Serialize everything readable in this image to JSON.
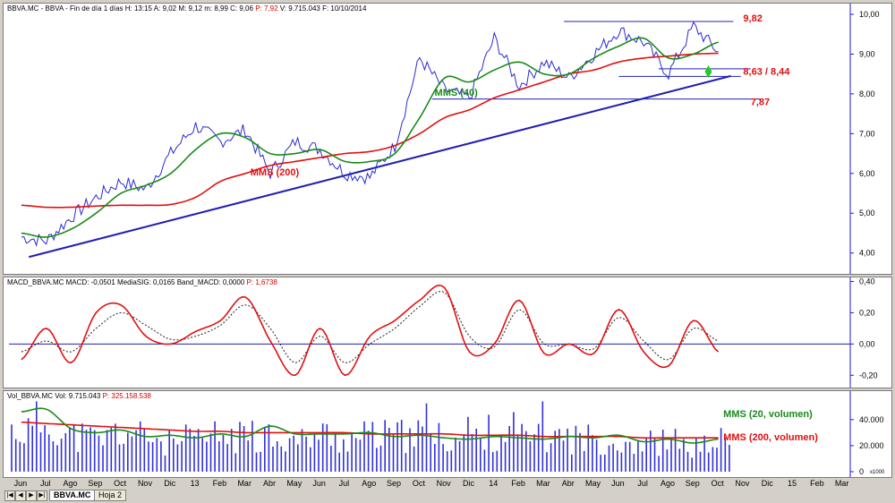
{
  "colors": {
    "price": "#2a2ad0",
    "ma40": "#1a8a1a",
    "ma200": "#e01010",
    "trendline": "#2020b0",
    "label_red": "#e01010",
    "label_green": "#1a8a1a",
    "macd": "#e01010",
    "signal": "#202020",
    "volume": "#3030d8"
  },
  "price_panel": {
    "header": {
      "prefix": "BBVA.MC - BBVA - Fin de día 1 días  H: 13:15  A: 9,02  M: 9,12  m: 8,99  C: 9,06  ",
      "pchange": "P: 7,92",
      "suffix": "  V: 9.715.043  F: 10/10/2014"
    },
    "annotations": {
      "resistance": "9,82",
      "support_range": "8,63 / 8,44",
      "support_low": "7,87",
      "ma40_label": "MMS (40)",
      "ma200_label": "MMS (200)"
    }
  },
  "macd_panel": {
    "header": {
      "text": "MACD_BBVA.MC  MACD: -0,0501  MediaSIG: 0,0165  Band_MACD: 0,0000  ",
      "pchange": "P: 1,6738"
    }
  },
  "volume_panel": {
    "header": {
      "text": "Vol_BBVA.MC  Vol: 9.715.043  ",
      "pchange": "P: 325.158.538"
    },
    "annotations": {
      "ma20_label": "MMS (20, volumen)",
      "ma200_label": "MMS (200, volumen)"
    },
    "scale_badge": "x1000"
  },
  "tabs": {
    "nav": [
      "|◀",
      "◀",
      "▶",
      "▶|"
    ],
    "items": [
      {
        "label": "BBVA.MC",
        "active": true
      },
      {
        "label": "Hoja 2",
        "active": false
      }
    ]
  },
  "chart_data": [
    {
      "type": "line",
      "title": "BBVA.MC",
      "ylim": [
        3.7,
        10.0
      ],
      "yticks": [
        "10,00",
        "9,00",
        "8,00",
        "7,00",
        "6,00",
        "5,00",
        "4,00"
      ],
      "ytick_values": [
        10,
        9,
        8,
        7,
        6,
        5,
        4
      ],
      "x_categories": [
        "Jun",
        "Jul",
        "Ago",
        "Sep",
        "Oct",
        "Nov",
        "Dic",
        "13",
        "Feb",
        "Mar",
        "Abr",
        "May",
        "Jun",
        "Jul",
        "Ago",
        "Sep",
        "Oct",
        "Nov",
        "Dic",
        "14",
        "Feb",
        "Mar",
        "Abr",
        "May",
        "Jun",
        "Jul",
        "Ago",
        "Sep",
        "Oct",
        "Nov",
        "Dic",
        "15",
        "Feb",
        "Mar"
      ],
      "last_data_index": 28,
      "series": [
        {
          "key": "price",
          "values": [
            4.4,
            4.3,
            4.9,
            5.4,
            5.8,
            5.6,
            6.5,
            7.2,
            6.8,
            7.1,
            6.0,
            6.8,
            6.6,
            6.0,
            5.9,
            6.7,
            8.9,
            8.1,
            7.9,
            9.4,
            8.2,
            8.8,
            8.4,
            9.0,
            9.6,
            9.3,
            8.5,
            9.7,
            9.06
          ]
        },
        {
          "key": "ma40",
          "name": "MMS (40)",
          "values": [
            4.5,
            4.4,
            4.6,
            5.0,
            5.5,
            5.7,
            6.0,
            6.6,
            7.0,
            6.9,
            6.5,
            6.5,
            6.6,
            6.3,
            6.3,
            6.5,
            7.4,
            8.4,
            8.3,
            8.6,
            8.8,
            8.5,
            8.5,
            8.9,
            9.2,
            9.4,
            8.9,
            9.0,
            9.3
          ]
        },
        {
          "key": "ma200",
          "name": "MMS (200)",
          "values": [
            5.2,
            5.15,
            5.15,
            5.18,
            5.2,
            5.2,
            5.22,
            5.4,
            5.8,
            6.0,
            6.2,
            6.3,
            6.4,
            6.5,
            6.55,
            6.7,
            7.0,
            7.4,
            7.6,
            7.9,
            8.1,
            8.3,
            8.5,
            8.6,
            8.8,
            8.9,
            8.95,
            9.0,
            9.02
          ]
        }
      ],
      "trendline": {
        "x": [
          0.3,
          28.5
        ],
        "y": [
          3.9,
          8.45
        ]
      },
      "horizontal_levels": [
        {
          "y": 9.82,
          "x": [
            21.8,
            28.6
          ]
        },
        {
          "y": 8.63,
          "x": [
            25.6,
            29.3
          ]
        },
        {
          "y": 8.44,
          "x": [
            24.0,
            28.9
          ]
        },
        {
          "y": 7.87,
          "x": [
            16.5,
            29.8
          ]
        }
      ]
    },
    {
      "type": "line",
      "title": "MACD",
      "ylim": [
        -0.25,
        0.38
      ],
      "yticks": [
        "0,40",
        "0,20",
        "0,00",
        "-0,20"
      ],
      "ytick_values": [
        0.4,
        0.2,
        0.0,
        -0.2
      ],
      "series": [
        {
          "key": "macd",
          "name": "MACD",
          "values": [
            -0.1,
            0.1,
            -0.12,
            0.2,
            0.25,
            0.05,
            0.0,
            0.08,
            0.15,
            0.3,
            0.02,
            -0.2,
            0.1,
            -0.2,
            0.05,
            0.15,
            0.28,
            0.36,
            -0.05,
            0.0,
            0.28,
            -0.06,
            0.0,
            -0.06,
            0.22,
            -0.05,
            -0.14,
            0.15,
            -0.05
          ]
        },
        {
          "key": "signal",
          "name": "MediaSIG",
          "values": [
            -0.05,
            0.02,
            -0.05,
            0.1,
            0.2,
            0.12,
            0.03,
            0.05,
            0.12,
            0.25,
            0.1,
            -0.12,
            0.05,
            -0.12,
            0.0,
            0.1,
            0.24,
            0.33,
            0.05,
            -0.02,
            0.22,
            0.0,
            0.0,
            -0.03,
            0.17,
            0.02,
            -0.1,
            0.1,
            0.02
          ]
        }
      ]
    },
    {
      "type": "bar",
      "title": "Volumen",
      "ylim": [
        0,
        55
      ],
      "yticks": [
        "40.000",
        "20.000",
        "0"
      ],
      "ytick_values": [
        40,
        20,
        0
      ],
      "series": [
        {
          "key": "volume",
          "name": "Vol",
          "values": [
            35,
            42,
            30,
            28,
            33,
            30,
            24,
            27,
            30,
            29,
            33,
            26,
            31,
            28,
            30,
            30,
            31,
            29,
            28,
            33,
            28,
            30,
            29,
            28,
            26,
            25,
            25,
            21,
            26
          ]
        },
        {
          "key": "ma20",
          "name": "MMS (20, volumen)",
          "values": [
            46,
            48,
            33,
            30,
            32,
            27,
            28,
            26,
            29,
            27,
            35,
            29,
            29,
            29,
            30,
            27,
            28,
            26,
            25,
            27,
            26,
            25,
            27,
            26,
            28,
            23,
            25,
            22,
            25
          ]
        },
        {
          "key": "ma200",
          "name": "MMS (200, volumen)",
          "values": [
            38,
            37,
            36,
            35,
            34,
            33,
            32,
            31,
            31,
            30,
            30,
            30,
            30,
            30,
            29,
            29,
            29,
            29,
            28,
            28,
            28,
            27,
            27,
            27,
            27,
            26,
            26,
            26,
            26
          ]
        }
      ]
    }
  ]
}
